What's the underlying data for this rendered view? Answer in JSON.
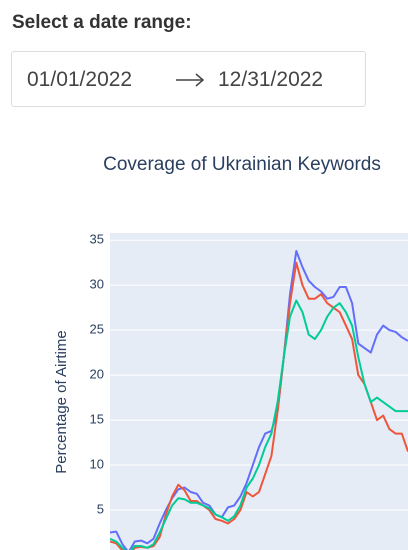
{
  "header": {
    "title": "Select a date range:"
  },
  "date_range": {
    "start": "01/01/2022",
    "end": "12/31/2022"
  },
  "chart_data": {
    "type": "line",
    "title": "Coverage of Ukrainian Keywords",
    "y_label": "Percentage of Airtime",
    "ylim": [
      0,
      35.8
    ],
    "yticks": [
      5,
      10,
      15,
      20,
      25,
      30,
      35
    ],
    "grid": true,
    "series": [
      {
        "color": "#636efa",
        "values": [
          2.5,
          2.6,
          1.2,
          0.3,
          1.5,
          1.6,
          1.3,
          1.8,
          3.5,
          5,
          6.3,
          7.3,
          7.5,
          7,
          6.8,
          5.8,
          5.5,
          4.5,
          4.2,
          5.3,
          5.5,
          6.5,
          8,
          10,
          12,
          13.5,
          13.8,
          16,
          22,
          29,
          33.8,
          32,
          30.5,
          29.8,
          29.3,
          28.5,
          28.7,
          29.8,
          29.8,
          28,
          23.5,
          23,
          22.5,
          24.5,
          25.5,
          25,
          24.8,
          24.2,
          23.8
        ]
      },
      {
        "color": "#ef553b",
        "values": [
          1.5,
          1.3,
          0.5,
          0,
          0.8,
          0.9,
          0.8,
          1,
          2,
          4.5,
          6.5,
          7.8,
          7.2,
          6,
          6,
          5.5,
          5,
          4,
          3.8,
          3.5,
          4,
          5,
          7,
          6.5,
          7,
          9,
          11,
          16,
          22,
          28,
          32.5,
          30,
          28.5,
          28.5,
          29,
          28,
          27.5,
          27,
          25.5,
          24,
          20,
          19,
          17,
          15,
          15.5,
          14,
          13.5,
          13.5,
          11.5
        ]
      },
      {
        "color": "#00cc96",
        "values": [
          1.8,
          1.5,
          0.8,
          0.2,
          1,
          1,
          0.8,
          1.2,
          2.5,
          4,
          5.5,
          6.3,
          6.2,
          5.8,
          5.8,
          5.5,
          5.2,
          4.5,
          4.2,
          3.8,
          4.3,
          5.5,
          7.5,
          8.5,
          10,
          12,
          13.5,
          17,
          22,
          26.5,
          28.3,
          27,
          24.5,
          24,
          25,
          26.5,
          27.5,
          28,
          27,
          25.5,
          22,
          19,
          17,
          17.5,
          17,
          16.5,
          16,
          16,
          16
        ]
      }
    ]
  }
}
